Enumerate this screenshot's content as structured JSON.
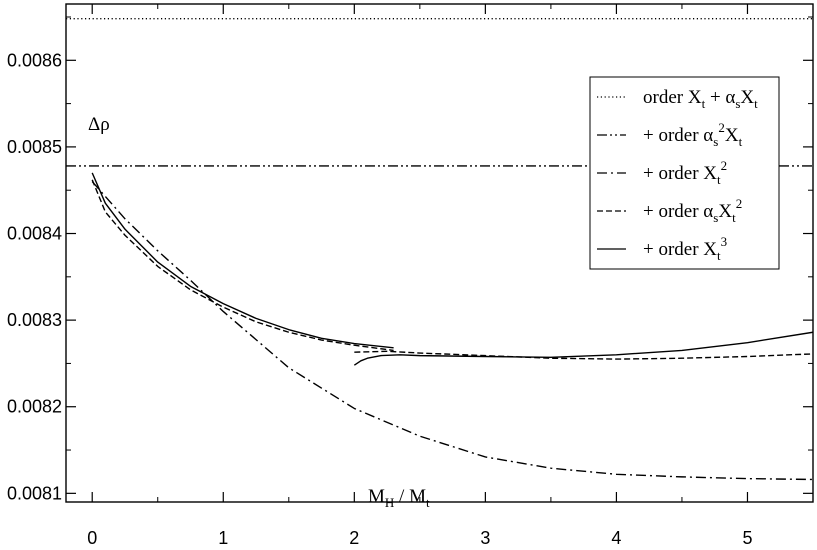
{
  "chart_data": {
    "type": "line",
    "annotations": {
      "ylabel_text": "Δρ",
      "xlabel_main": "M",
      "xlabel_sub1": "H",
      "xlabel_sep": " / M",
      "xlabel_sub2": "t"
    },
    "xlim": [
      -0.2,
      5.5
    ],
    "ylim": [
      0.00809,
      0.008665
    ],
    "x_ticks": [
      0,
      1,
      2,
      3,
      4,
      5
    ],
    "y_ticks": [
      0.0081,
      0.0082,
      0.0083,
      0.0084,
      0.0085,
      0.0086
    ],
    "y_tick_labels": [
      "0.0081",
      "0.0082",
      "0.0083",
      "0.0084",
      "0.0085",
      "0.0086"
    ],
    "grid": false,
    "legend_position": "top-right",
    "legend": [
      {
        "style": "dotted",
        "parts": [
          {
            "t": "order X"
          },
          {
            "t": "t",
            "sub": true
          },
          {
            "t": " + α"
          },
          {
            "t": "s",
            "sub": true
          },
          {
            "t": "X"
          },
          {
            "t": "t",
            "sub": true
          }
        ]
      },
      {
        "style": "dash-dot-dot",
        "parts": [
          {
            "t": "+ order α"
          },
          {
            "t": "s",
            "sub": true
          },
          {
            "t": "2",
            "sup": true
          },
          {
            "t": "X"
          },
          {
            "t": "t",
            "sub": true
          }
        ]
      },
      {
        "style": "dash-dot",
        "parts": [
          {
            "t": "+ order X"
          },
          {
            "t": "t",
            "sub": true
          },
          {
            "t": "2",
            "sup": true
          }
        ]
      },
      {
        "style": "dashed",
        "parts": [
          {
            "t": "+ order α"
          },
          {
            "t": "s",
            "sub": true
          },
          {
            "t": "X"
          },
          {
            "t": "t",
            "sub": true
          },
          {
            "t": "2",
            "sup": true
          }
        ]
      },
      {
        "style": "solid",
        "parts": [
          {
            "t": "+ order X"
          },
          {
            "t": "t",
            "sub": true
          },
          {
            "t": "3",
            "sup": true
          }
        ]
      }
    ],
    "series": [
      {
        "style": "dotted",
        "x": [
          -0.2,
          5.5
        ],
        "y": [
          0.008648,
          0.008648
        ]
      },
      {
        "style": "dash-dot-dot",
        "x": [
          -0.2,
          5.5
        ],
        "y": [
          0.008478,
          0.008478
        ]
      },
      {
        "style": "dash-dot",
        "x": [
          0,
          0.25,
          0.5,
          0.75,
          1.0,
          1.5,
          2.0,
          2.5,
          3.0,
          3.5,
          4.0,
          4.5,
          5.0,
          5.5
        ],
        "y": [
          0.00846,
          0.008417,
          0.00838,
          0.008346,
          0.00831,
          0.008245,
          0.008198,
          0.008166,
          0.008142,
          0.008129,
          0.008122,
          0.008119,
          0.008117,
          0.008116
        ]
      },
      {
        "style": "dashed",
        "x": [
          0,
          0.1,
          0.25,
          0.5,
          0.75,
          1.0,
          1.25,
          1.5,
          1.75,
          2.0,
          2.3
        ],
        "y": [
          0.008462,
          0.008425,
          0.008398,
          0.008362,
          0.008335,
          0.008315,
          0.008298,
          0.008286,
          0.008277,
          0.008271,
          0.008265
        ]
      },
      {
        "style": "dashed",
        "x": [
          2.0,
          2.25,
          2.5,
          3.0,
          3.5,
          4.0,
          4.5,
          5.0,
          5.5
        ],
        "y": [
          0.008263,
          0.008264,
          0.008262,
          0.008259,
          0.008256,
          0.008255,
          0.008256,
          0.008258,
          0.008261
        ]
      },
      {
        "style": "solid",
        "x": [
          0,
          0.1,
          0.25,
          0.5,
          0.75,
          1.0,
          1.25,
          1.5,
          1.75,
          2.0,
          2.3
        ],
        "y": [
          0.00847,
          0.008435,
          0.008405,
          0.008367,
          0.008339,
          0.008319,
          0.008302,
          0.008289,
          0.008279,
          0.008273,
          0.008268
        ]
      },
      {
        "style": "solid",
        "x": [
          2.0,
          2.05,
          2.1,
          2.2,
          2.35,
          2.5,
          3.0,
          3.5,
          4.0,
          4.5,
          5.0,
          5.5
        ],
        "y": [
          0.008248,
          0.008253,
          0.008256,
          0.008259,
          0.00826,
          0.008259,
          0.008258,
          0.008257,
          0.00826,
          0.008265,
          0.008274,
          0.008286
        ]
      }
    ]
  }
}
